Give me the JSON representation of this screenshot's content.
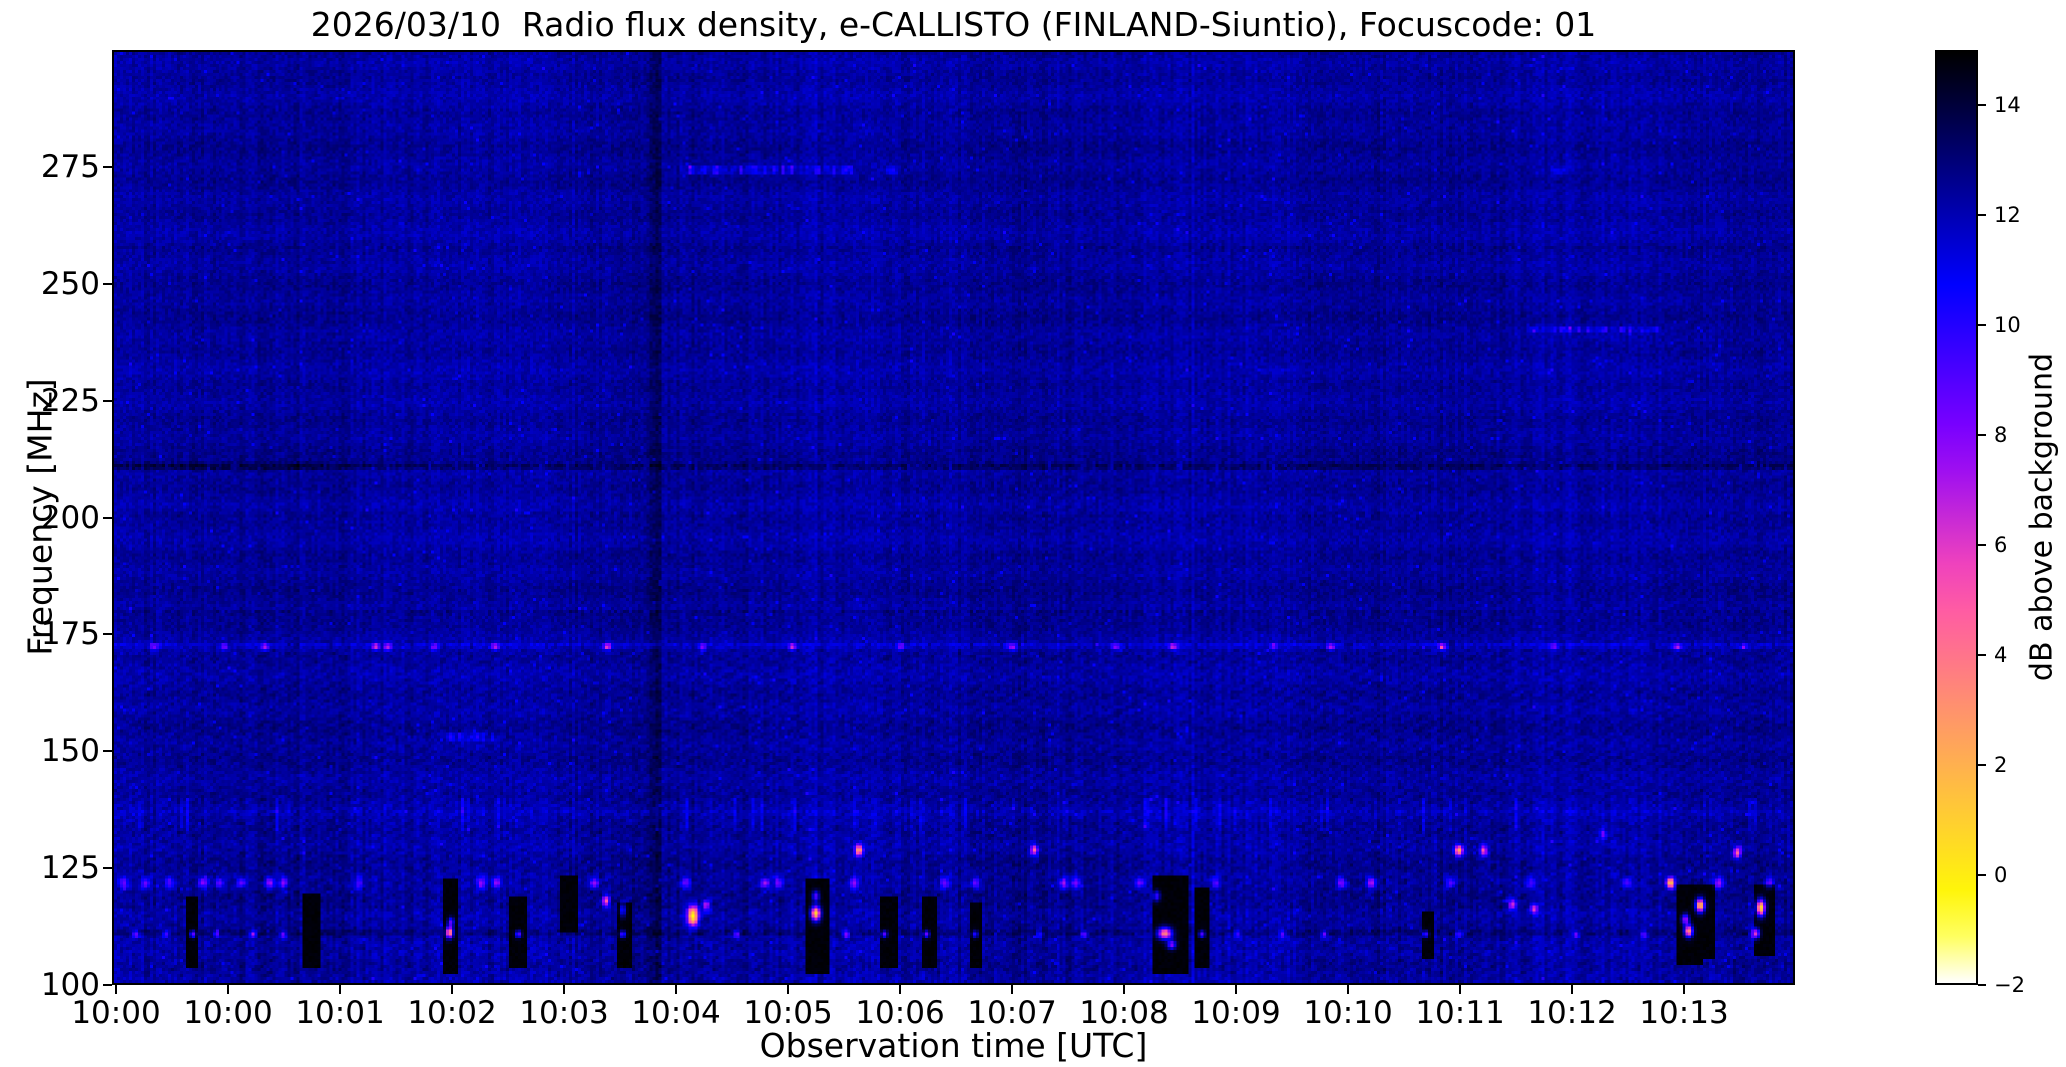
{
  "chart_data": {
    "type": "heatmap",
    "title": "2026/03/10  Radio flux density, e-CALLISTO (FINLAND-Siuntio), Focuscode: 01",
    "xlabel": "Observation time [UTC]",
    "ylabel": "Frequency [MHz]",
    "colorbar_label": "dB above background",
    "colormap": "gnuplot2",
    "grid": false,
    "time_start": "10:00",
    "time_end": "10:14",
    "freq_range": [
      100,
      300
    ],
    "value_range_db": [
      -2,
      15
    ],
    "background_db": 0.55,
    "x_tick_labels": [
      "10:00",
      "10:00",
      "10:01",
      "10:02",
      "10:03",
      "10:04",
      "10:05",
      "10:06",
      "10:07",
      "10:08",
      "10:09",
      "10:10",
      "10:11",
      "10:12",
      "10:13"
    ],
    "y_tick_values": [
      275,
      250,
      225,
      200,
      175,
      150,
      125,
      100
    ],
    "y_tick_labels": [
      "275",
      "250",
      "225",
      "200",
      "175",
      "150",
      "125",
      "100"
    ],
    "colorbar_tick_values": [
      14,
      12,
      10,
      8,
      6,
      4,
      2,
      0,
      -2
    ],
    "colorbar_tick_labels": [
      "14",
      "12",
      "10",
      "8",
      "6",
      "4",
      "2",
      "0",
      "−2"
    ],
    "features": {
      "h_lines": [
        {
          "f": 172.6,
          "u0": 0,
          "u1": 1,
          "amp": 1.0,
          "dash": 0.85,
          "th": 1.5
        },
        {
          "f": 179.6,
          "u0": 0,
          "u1": 1,
          "amp": -0.85,
          "dash": 0.55,
          "th": 1.2
        },
        {
          "f": 211.0,
          "u0": 0,
          "u1": 1,
          "amp": -1.25,
          "dash": 0.9,
          "th": 1.8
        },
        {
          "f": 211.0,
          "u0": 0,
          "u1": 0.13,
          "amp": -0.6,
          "dash": 1.0,
          "th": 2.4
        },
        {
          "f": 200.6,
          "u0": 0,
          "u1": 1,
          "amp": -0.5,
          "dash": 0.5,
          "th": 1.2
        },
        {
          "f": 116.5,
          "u0": 0,
          "u1": 1,
          "amp": -0.45,
          "dash": 0.5,
          "th": 1.2
        },
        {
          "f": 121.8,
          "u0": 0,
          "u1": 1,
          "amp": -0.4,
          "dash": 0.5,
          "th": 1.2
        },
        {
          "f": 110.8,
          "u0": 0,
          "u1": 1,
          "amp": -0.75,
          "dash": 0.95,
          "th": 1.6
        },
        {
          "f": 136.8,
          "u0": 0,
          "u1": 1,
          "amp": 0.5,
          "dash": 0.6,
          "th": 1.6
        },
        {
          "f": 258.0,
          "u0": 0,
          "u1": 1,
          "amp": -0.35,
          "dash": 0.5,
          "th": 1.4
        },
        {
          "f": 283.5,
          "u0": 0,
          "u1": 1,
          "amp": -0.3,
          "dash": 0.5,
          "th": 1.2
        },
        {
          "f": 107.5,
          "u0": 0,
          "u1": 1,
          "amp": -0.4,
          "dash": 0.6,
          "th": 1.2
        }
      ],
      "segments": [
        {
          "f": 274.8,
          "u0": 0.337,
          "u1": 0.404,
          "amp": 2.8,
          "dot": 0.5
        },
        {
          "f": 274.8,
          "u0": 0.404,
          "u1": 0.44,
          "amp": 2.2,
          "dot": 0.6
        },
        {
          "f": 240.4,
          "u0": 0.841,
          "u1": 0.921,
          "amp": 2.4,
          "dot": 0.75
        },
        {
          "f": 152.9,
          "u0": 0.198,
          "u1": 0.226,
          "amp": 2.0,
          "dot": 0.3
        }
      ],
      "dark_column": {
        "u": 0.3226,
        "amp": -0.85,
        "w": 0.0035
      },
      "dropouts": [
        {
          "u0": 0.043,
          "u1": 0.048,
          "f0": 104,
          "f1": 118
        },
        {
          "u0": 0.113,
          "u1": 0.121,
          "f0": 104,
          "f1": 119
        },
        {
          "u0": 0.197,
          "u1": 0.203,
          "f0": 103,
          "f1": 122
        },
        {
          "u0": 0.237,
          "u1": 0.243,
          "f0": 104,
          "f1": 118
        },
        {
          "u0": 0.267,
          "u1": 0.274,
          "f0": 112,
          "f1": 123
        },
        {
          "u0": 0.301,
          "u1": 0.306,
          "f0": 104,
          "f1": 117
        },
        {
          "u0": 0.413,
          "u1": 0.423,
          "f0": 103,
          "f1": 122
        },
        {
          "u0": 0.458,
          "u1": 0.464,
          "f0": 104,
          "f1": 118
        },
        {
          "u0": 0.482,
          "u1": 0.488,
          "f0": 104,
          "f1": 118
        },
        {
          "u0": 0.51,
          "u1": 0.515,
          "f0": 104,
          "f1": 117
        },
        {
          "u0": 0.62,
          "u1": 0.637,
          "f0": 103,
          "f1": 123
        },
        {
          "u0": 0.644,
          "u1": 0.649,
          "f0": 104,
          "f1": 120
        },
        {
          "u0": 0.779,
          "u1": 0.783,
          "f0": 106,
          "f1": 115
        },
        {
          "u0": 0.932,
          "u1": 0.943,
          "f0": 105,
          "f1": 121
        },
        {
          "u0": 0.944,
          "u1": 0.951,
          "f0": 106,
          "f1": 121
        },
        {
          "u0": 0.977,
          "u1": 0.986,
          "f0": 107,
          "f1": 121
        }
      ],
      "carrier_111": {
        "dot_w": 0.0013,
        "dot_h": 0.55,
        "dots": [
          [
            0.012,
            5
          ],
          [
            0.03,
            4
          ],
          [
            0.046,
            6.5
          ],
          [
            0.06,
            4.2
          ],
          [
            0.082,
            5.5
          ],
          [
            0.1,
            4.6
          ],
          [
            0.24,
            6.5
          ],
          [
            0.302,
            6
          ],
          [
            0.37,
            5
          ],
          [
            0.435,
            5.5
          ],
          [
            0.458,
            6
          ],
          [
            0.483,
            6.5
          ],
          [
            0.512,
            5
          ],
          [
            0.55,
            4.2
          ],
          [
            0.577,
            5
          ],
          [
            0.647,
            6
          ],
          [
            0.668,
            4
          ],
          [
            0.695,
            4.5
          ],
          [
            0.72,
            5
          ],
          [
            0.78,
            6
          ],
          [
            0.8,
            4.2
          ],
          [
            0.87,
            4.5
          ],
          [
            0.91,
            4
          ]
        ]
      },
      "carrier_172": {
        "dot_w": 0.0016,
        "dot_h": 0.5,
        "dots": [
          [
            0.023,
            4.5
          ],
          [
            0.065,
            4
          ],
          [
            0.089,
            5.5
          ],
          [
            0.155,
            6
          ],
          [
            0.162,
            5
          ],
          [
            0.19,
            3.5
          ],
          [
            0.226,
            5
          ],
          [
            0.293,
            6.5
          ],
          [
            0.35,
            4
          ],
          [
            0.403,
            5
          ],
          [
            0.468,
            4
          ],
          [
            0.534,
            5.5
          ],
          [
            0.596,
            4
          ],
          [
            0.63,
            6
          ],
          [
            0.69,
            3.5
          ],
          [
            0.724,
            5
          ],
          [
            0.79,
            6.2
          ],
          [
            0.857,
            4
          ],
          [
            0.93,
            5
          ],
          [
            0.97,
            3.5
          ]
        ]
      },
      "blobs_122": {
        "f": 121.8,
        "w": 0.0018,
        "h": 0.8,
        "dots": [
          [
            0.005,
            4
          ],
          [
            0.018,
            4.5
          ],
          [
            0.032,
            3.6
          ],
          [
            0.052,
            5
          ],
          [
            0.062,
            4
          ],
          [
            0.075,
            4.6
          ],
          [
            0.092,
            5.6
          ],
          [
            0.1,
            4.8
          ],
          [
            0.145,
            3.6
          ],
          [
            0.218,
            5.2
          ],
          [
            0.227,
            4.4
          ],
          [
            0.285,
            5.4
          ],
          [
            0.34,
            4.2
          ],
          [
            0.387,
            5.2
          ],
          [
            0.395,
            4.6
          ],
          [
            0.44,
            5.0
          ],
          [
            0.494,
            4.5
          ],
          [
            0.512,
            4.2
          ],
          [
            0.565,
            5.4
          ],
          [
            0.572,
            4.6
          ],
          [
            0.61,
            4
          ],
          [
            0.655,
            3.6
          ],
          [
            0.73,
            4.6
          ],
          [
            0.748,
            5.8
          ],
          [
            0.795,
            4
          ],
          [
            0.843,
            3.6
          ],
          [
            0.9,
            3.4
          ],
          [
            0.926,
            6
          ],
          [
            0.955,
            5
          ],
          [
            0.985,
            4.2
          ]
        ]
      },
      "blobs": [
        [
          0.344,
          114.8,
          13.5,
          0.0022,
          1.5
        ],
        [
          0.417,
          115.3,
          14.0,
          0.002,
          1.1
        ],
        [
          0.417,
          119.0,
          6.0,
          0.0015,
          0.8
        ],
        [
          0.199,
          111.2,
          12.0,
          0.0015,
          0.9
        ],
        [
          0.2,
          113.5,
          6.0,
          0.0013,
          0.7
        ],
        [
          0.625,
          111.0,
          11.5,
          0.003,
          0.9
        ],
        [
          0.629,
          108.5,
          7.0,
          0.0018,
          0.7
        ],
        [
          0.937,
          111.5,
          12.0,
          0.0018,
          0.9
        ],
        [
          0.935,
          114.0,
          8.0,
          0.0016,
          0.8
        ],
        [
          0.944,
          117.0,
          14.0,
          0.0018,
          1.0
        ],
        [
          0.98,
          116.5,
          14.5,
          0.0018,
          1.2
        ],
        [
          0.977,
          111.0,
          9.0,
          0.0016,
          0.8
        ],
        [
          0.443,
          128.8,
          10.0,
          0.0016,
          0.8
        ],
        [
          0.547,
          128.8,
          8.0,
          0.0015,
          0.8
        ],
        [
          0.8,
          128.7,
          10.0,
          0.0018,
          0.8
        ],
        [
          0.815,
          128.7,
          7.5,
          0.0015,
          0.8
        ],
        [
          0.966,
          128.3,
          8.5,
          0.0016,
          0.8
        ],
        [
          0.886,
          132.5,
          4.0,
          0.0015,
          0.7
        ],
        [
          0.292,
          118.0,
          8.0,
          0.0015,
          0.8
        ],
        [
          0.62,
          119.0,
          5.5,
          0.0015,
          0.8
        ],
        [
          0.832,
          117.2,
          6.5,
          0.0015,
          0.8
        ],
        [
          0.845,
          116.2,
          6.0,
          0.0015,
          0.8
        ],
        [
          0.352,
          117.0,
          6.0,
          0.0015,
          0.8
        ],
        [
          0.302,
          116.0,
          5.0,
          0.0012,
          1.0
        ],
        [
          0.926,
          121.8,
          6.0,
          0.0015,
          0.8
        ],
        [
          0.462,
          274.8,
          1.8,
          0.003,
          0.6
        ],
        [
          0.86,
          274.8,
          1.6,
          0.003,
          0.6
        ]
      ]
    }
  }
}
